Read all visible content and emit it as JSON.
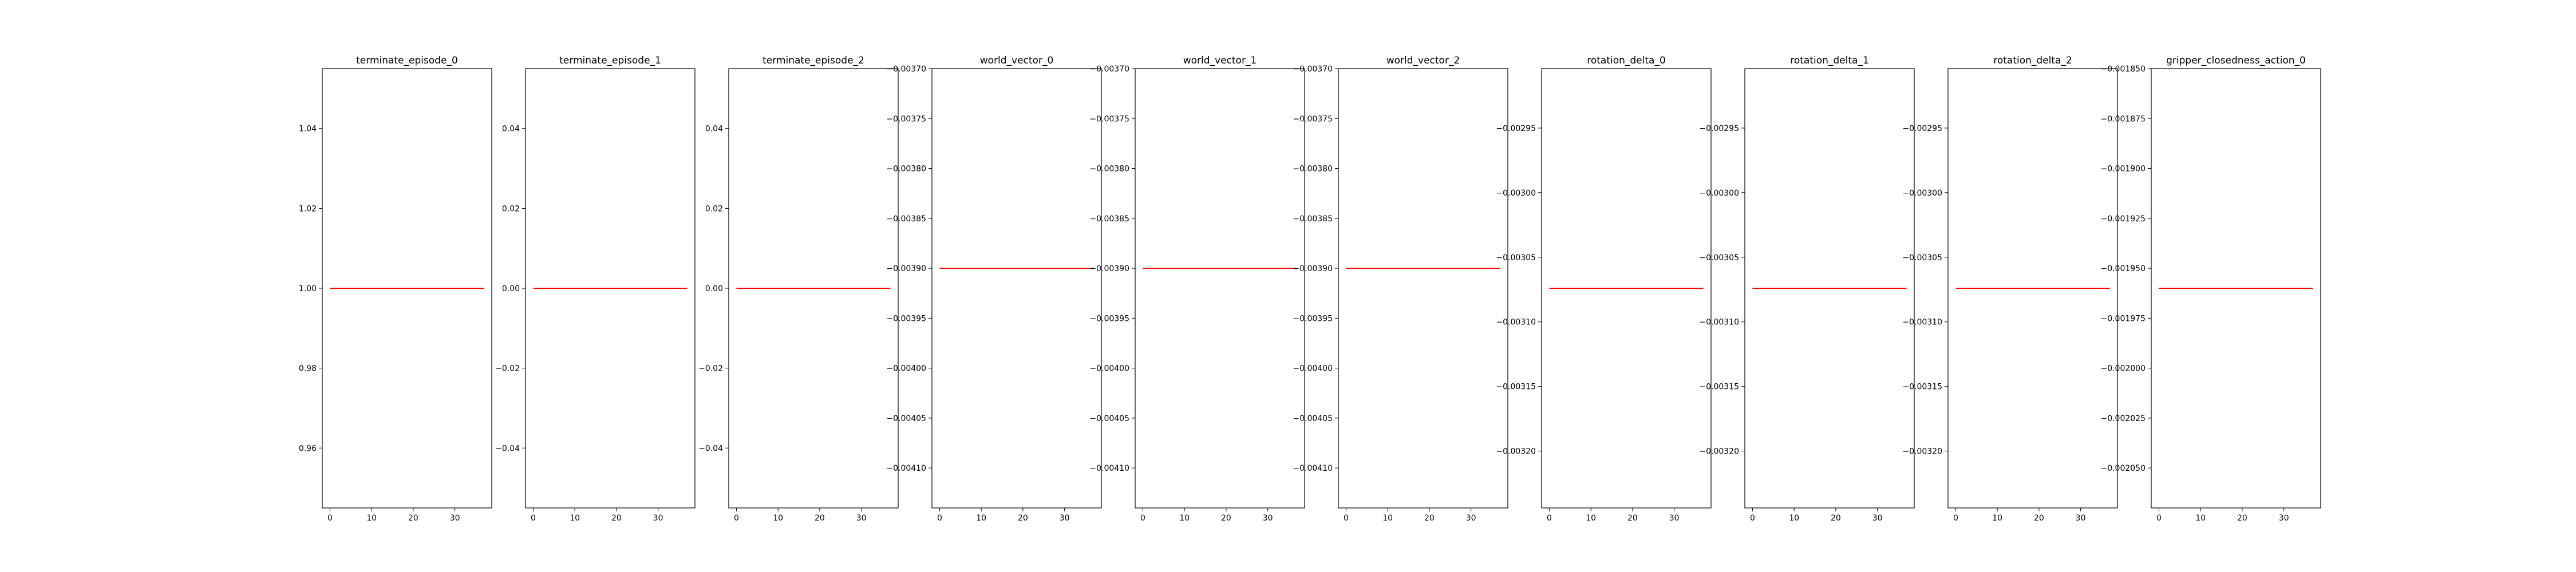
{
  "chart_data": [
    {
      "type": "line",
      "title": "terminate_episode_0",
      "x": [
        0,
        37
      ],
      "y": [
        1.0,
        1.0
      ],
      "xlim": [
        -1.85,
        38.85
      ],
      "ylim": [
        0.945,
        1.055
      ],
      "xticks": [
        0,
        10,
        20,
        30
      ],
      "yticks": [
        0.96,
        0.98,
        1.0,
        1.02,
        1.04
      ],
      "yticklabels": [
        "0.96",
        "0.98",
        "1.00",
        "1.02",
        "1.04"
      ],
      "line_color": "#ff0000"
    },
    {
      "type": "line",
      "title": "terminate_episode_1",
      "x": [
        0,
        37
      ],
      "y": [
        0.0,
        0.0
      ],
      "xlim": [
        -1.85,
        38.85
      ],
      "ylim": [
        -0.055,
        0.055
      ],
      "xticks": [
        0,
        10,
        20,
        30
      ],
      "yticks": [
        -0.04,
        -0.02,
        0.0,
        0.02,
        0.04
      ],
      "yticklabels": [
        "−0.04",
        "−0.02",
        "0.00",
        "0.02",
        "0.04"
      ],
      "line_color": "#ff0000"
    },
    {
      "type": "line",
      "title": "terminate_episode_2",
      "x": [
        0,
        37
      ],
      "y": [
        0.0,
        0.0
      ],
      "xlim": [
        -1.85,
        38.85
      ],
      "ylim": [
        -0.055,
        0.055
      ],
      "xticks": [
        0,
        10,
        20,
        30
      ],
      "yticks": [
        -0.04,
        -0.02,
        0.0,
        0.02,
        0.04
      ],
      "yticklabels": [
        "−0.04",
        "−0.02",
        "0.00",
        "0.02",
        "0.04"
      ],
      "line_color": "#ff0000"
    },
    {
      "type": "line",
      "title": "world_vector_0",
      "x": [
        0,
        37
      ],
      "y": [
        -0.0039,
        -0.0039
      ],
      "xlim": [
        -1.85,
        38.85
      ],
      "ylim": [
        -0.00414,
        -0.0037
      ],
      "xticks": [
        0,
        10,
        20,
        30
      ],
      "yticks": [
        -0.0037,
        -0.00375,
        -0.0038,
        -0.00385,
        -0.0039,
        -0.00395,
        -0.004,
        -0.00405,
        -0.0041
      ],
      "yticklabels": [
        "−0.00370",
        "−0.00375",
        "−0.00380",
        "−0.00385",
        "−0.00390",
        "−0.00395",
        "−0.00400",
        "−0.00405",
        "−0.00410"
      ],
      "line_color": "#ff0000"
    },
    {
      "type": "line",
      "title": "world_vector_1",
      "x": [
        0,
        37
      ],
      "y": [
        -0.0039,
        -0.0039
      ],
      "xlim": [
        -1.85,
        38.85
      ],
      "ylim": [
        -0.00414,
        -0.0037
      ],
      "xticks": [
        0,
        10,
        20,
        30
      ],
      "yticks": [
        -0.0037,
        -0.00375,
        -0.0038,
        -0.00385,
        -0.0039,
        -0.00395,
        -0.004,
        -0.00405,
        -0.0041
      ],
      "yticklabels": [
        "−0.00370",
        "−0.00375",
        "−0.00380",
        "−0.00385",
        "−0.00390",
        "−0.00395",
        "−0.00400",
        "−0.00405",
        "−0.00410"
      ],
      "line_color": "#ff0000"
    },
    {
      "type": "line",
      "title": "world_vector_2",
      "x": [
        0,
        37
      ],
      "y": [
        -0.0039,
        -0.0039
      ],
      "xlim": [
        -1.85,
        38.85
      ],
      "ylim": [
        -0.00414,
        -0.0037
      ],
      "xticks": [
        0,
        10,
        20,
        30
      ],
      "yticks": [
        -0.0037,
        -0.00375,
        -0.0038,
        -0.00385,
        -0.0039,
        -0.00395,
        -0.004,
        -0.00405,
        -0.0041
      ],
      "yticklabels": [
        "−0.00370",
        "−0.00375",
        "−0.00380",
        "−0.00385",
        "−0.00390",
        "−0.00395",
        "−0.00400",
        "−0.00405",
        "−0.00410"
      ],
      "line_color": "#ff0000"
    },
    {
      "type": "line",
      "title": "rotation_delta_0",
      "x": [
        0,
        37
      ],
      "y": [
        -0.003074,
        -0.003074
      ],
      "xlim": [
        -1.85,
        38.85
      ],
      "ylim": [
        -0.003244,
        -0.002904
      ],
      "xticks": [
        0,
        10,
        20,
        30
      ],
      "yticks": [
        -0.00295,
        -0.003,
        -0.00305,
        -0.0031,
        -0.00315,
        -0.0032
      ],
      "yticklabels": [
        "−0.00295",
        "−0.00300",
        "−0.00305",
        "−0.00310",
        "−0.00315",
        "−0.00320"
      ],
      "line_color": "#ff0000"
    },
    {
      "type": "line",
      "title": "rotation_delta_1",
      "x": [
        0,
        37
      ],
      "y": [
        -0.003074,
        -0.003074
      ],
      "xlim": [
        -1.85,
        38.85
      ],
      "ylim": [
        -0.003244,
        -0.002904
      ],
      "xticks": [
        0,
        10,
        20,
        30
      ],
      "yticks": [
        -0.00295,
        -0.003,
        -0.00305,
        -0.0031,
        -0.00315,
        -0.0032
      ],
      "yticklabels": [
        "−0.00295",
        "−0.00300",
        "−0.00305",
        "−0.00310",
        "−0.00315",
        "−0.00320"
      ],
      "line_color": "#ff0000"
    },
    {
      "type": "line",
      "title": "rotation_delta_2",
      "x": [
        0,
        37
      ],
      "y": [
        -0.003074,
        -0.003074
      ],
      "xlim": [
        -1.85,
        38.85
      ],
      "ylim": [
        -0.003244,
        -0.002904
      ],
      "xticks": [
        0,
        10,
        20,
        30
      ],
      "yticks": [
        -0.00295,
        -0.003,
        -0.00305,
        -0.0031,
        -0.00315,
        -0.0032
      ],
      "yticklabels": [
        "−0.00295",
        "−0.00300",
        "−0.00305",
        "−0.00310",
        "−0.00315",
        "−0.00320"
      ],
      "line_color": "#ff0000"
    },
    {
      "type": "line",
      "title": "gripper_closedness_action_0",
      "x": [
        0,
        37
      ],
      "y": [
        -0.00196,
        -0.00196
      ],
      "xlim": [
        -1.85,
        38.85
      ],
      "ylim": [
        -0.00207,
        -0.00185
      ],
      "xticks": [
        0,
        10,
        20,
        30
      ],
      "yticks": [
        -0.00185,
        -0.001875,
        -0.0019,
        -0.001925,
        -0.00195,
        -0.001975,
        -0.002,
        -0.002025,
        -0.00205
      ],
      "yticklabels": [
        "−0.001850",
        "−0.001875",
        "−0.001900",
        "−0.001925",
        "−0.001950",
        "−0.001975",
        "−0.002000",
        "−0.002025",
        "−0.002050"
      ],
      "line_color": "#ff0000"
    }
  ]
}
